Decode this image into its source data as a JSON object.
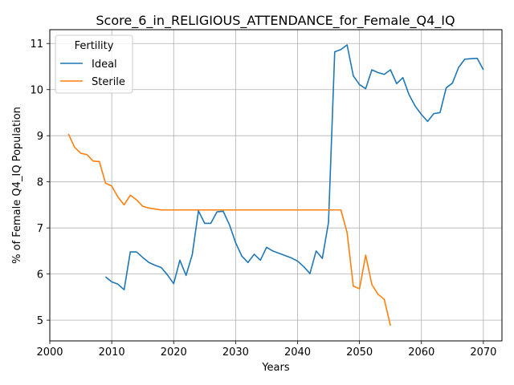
{
  "chart_data": {
    "type": "line",
    "title": "Score_6_in_RELIGIOUS_ATTENDANCE_for_Female_Q4_IQ",
    "xlabel": "Years",
    "ylabel": "% of Female Q4_IQ Population",
    "xlim": [
      2000,
      2073
    ],
    "ylim": [
      4.55,
      11.3
    ],
    "xticks": [
      2000,
      2010,
      2020,
      2030,
      2040,
      2050,
      2060,
      2070
    ],
    "yticks": [
      5,
      6,
      7,
      8,
      9,
      10,
      11
    ],
    "grid": true,
    "legend": {
      "title": "Fertility",
      "position": "top-left"
    },
    "series": [
      {
        "name": "Ideal",
        "color": "#1f77b4",
        "x": [
          2009,
          2010,
          2011,
          2012,
          2013,
          2014,
          2015,
          2016,
          2017,
          2018,
          2019,
          2020,
          2021,
          2022,
          2023,
          2024,
          2025,
          2026,
          2027,
          2028,
          2029,
          2030,
          2031,
          2032,
          2033,
          2034,
          2035,
          2036,
          2037,
          2038,
          2039,
          2040,
          2041,
          2042,
          2043,
          2044,
          2045,
          2046,
          2047,
          2048,
          2049,
          2050,
          2051,
          2052,
          2053,
          2054,
          2055,
          2056,
          2057,
          2058,
          2059,
          2060,
          2061,
          2062,
          2063,
          2064,
          2065,
          2066,
          2067,
          2068,
          2069,
          2070
        ],
        "y": [
          5.94,
          5.83,
          5.78,
          5.66,
          6.48,
          6.48,
          6.36,
          6.25,
          6.19,
          6.14,
          5.98,
          5.79,
          6.3,
          5.97,
          6.42,
          7.37,
          7.1,
          7.1,
          7.35,
          7.36,
          7.07,
          6.68,
          6.39,
          6.25,
          6.43,
          6.3,
          6.58,
          6.5,
          6.45,
          6.4,
          6.35,
          6.28,
          6.16,
          6.01,
          6.5,
          6.34,
          7.12,
          10.82,
          10.87,
          10.97,
          10.3,
          10.11,
          10.02,
          10.43,
          10.37,
          10.33,
          10.43,
          10.13,
          10.26,
          9.89,
          9.64,
          9.46,
          9.31,
          9.48,
          9.5,
          10.04,
          10.14,
          10.48,
          10.66,
          10.67,
          10.68,
          10.43
        ]
      },
      {
        "name": "Sterile",
        "color": "#ff7f0e",
        "x": [
          2003,
          2004,
          2005,
          2006,
          2007,
          2008,
          2009,
          2010,
          2011,
          2012,
          2013,
          2014,
          2015,
          2016,
          2017,
          2018,
          2019,
          2020,
          2021,
          2022,
          2023,
          2024,
          2025,
          2026,
          2027,
          2028,
          2029,
          2030,
          2031,
          2032,
          2033,
          2034,
          2035,
          2036,
          2037,
          2038,
          2039,
          2040,
          2041,
          2042,
          2043,
          2044,
          2045,
          2046,
          2047,
          2048,
          2049,
          2050,
          2051,
          2052,
          2053,
          2054,
          2055
        ],
        "y": [
          9.04,
          8.75,
          8.62,
          8.59,
          8.45,
          8.44,
          7.97,
          7.91,
          7.67,
          7.5,
          7.71,
          7.61,
          7.47,
          7.43,
          7.41,
          7.39,
          7.39,
          7.39,
          7.39,
          7.39,
          7.39,
          7.39,
          7.39,
          7.39,
          7.39,
          7.39,
          7.39,
          7.39,
          7.39,
          7.39,
          7.39,
          7.39,
          7.39,
          7.39,
          7.39,
          7.39,
          7.39,
          7.39,
          7.39,
          7.39,
          7.39,
          7.39,
          7.39,
          7.39,
          7.39,
          6.9,
          5.74,
          5.68,
          6.41,
          5.77,
          5.56,
          5.45,
          4.88
        ]
      }
    ]
  }
}
